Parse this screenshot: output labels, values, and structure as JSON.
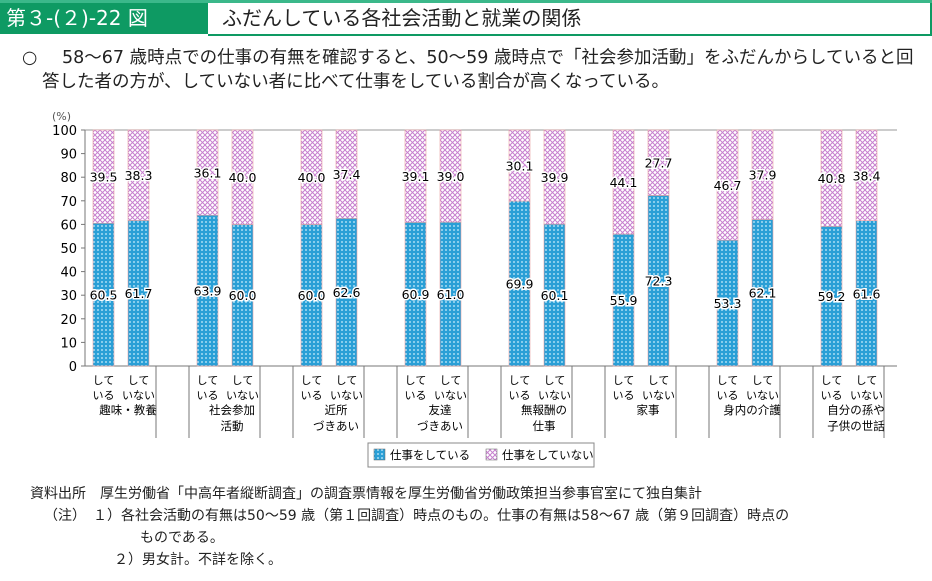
{
  "header": {
    "figure_number": "第３-(２)-22 図",
    "title": "ふだんしている各社会活動と就業の関係"
  },
  "lead": {
    "bullet": "○",
    "text": "58～67 歳時点での仕事の有無を確認すると、50～59 歳時点で「社会参加活動」をふだんからしていると回答した者の方が、していない者に比べて仕事をしている割合が高くなっている。"
  },
  "chart_data": {
    "type": "bar",
    "stacked": true,
    "ylabel": "(%)",
    "ylim": [
      0,
      100
    ],
    "yticks": [
      "0",
      "10",
      "20",
      "30",
      "40",
      "50",
      "60",
      "70",
      "80",
      "90",
      "100"
    ],
    "bar_labels": [
      [
        "して",
        "いる"
      ],
      [
        "して",
        "いない"
      ]
    ],
    "categories": [
      [
        "趣味・教養"
      ],
      [
        "社会参加",
        "活動"
      ],
      [
        "近所",
        "づきあい"
      ],
      [
        "友達",
        "づきあい"
      ],
      [
        "無報酬の",
        "仕事"
      ],
      [
        "家事"
      ],
      [
        "身内の介護"
      ],
      [
        "自分の孫や",
        "子供の世話"
      ]
    ],
    "series": [
      {
        "name": "仕事をしている",
        "color": "#2a9fd6",
        "values": [
          [
            60.5,
            61.7
          ],
          [
            63.9,
            60.0
          ],
          [
            60.0,
            62.6
          ],
          [
            60.9,
            61.0
          ],
          [
            69.9,
            60.1
          ],
          [
            55.9,
            72.3
          ],
          [
            53.3,
            62.1
          ],
          [
            59.2,
            61.6
          ]
        ]
      },
      {
        "name": "仕事をしていない",
        "color": "#c77fcf",
        "values": [
          [
            39.5,
            38.3
          ],
          [
            36.1,
            40.0
          ],
          [
            40.0,
            37.4
          ],
          [
            39.1,
            39.0
          ],
          [
            30.1,
            39.9
          ],
          [
            44.1,
            27.7
          ],
          [
            46.7,
            37.9
          ],
          [
            40.8,
            38.4
          ]
        ]
      }
    ],
    "legend": "bottom-center"
  },
  "source": {
    "label": "資料出所",
    "text": "厚生労働省「中高年者縦断調査」の調査票情報を厚生労働省労働政策担当参事官室にて独自集計"
  },
  "notes": {
    "label": "（注）",
    "items": [
      "１）各社会活動の有無は50～59 歳（第１回調査）時点のもの。仕事の有無は58～67 歳（第９回調査）時点の",
      "ものである。",
      "２）男女計。不詳を除く。"
    ]
  }
}
